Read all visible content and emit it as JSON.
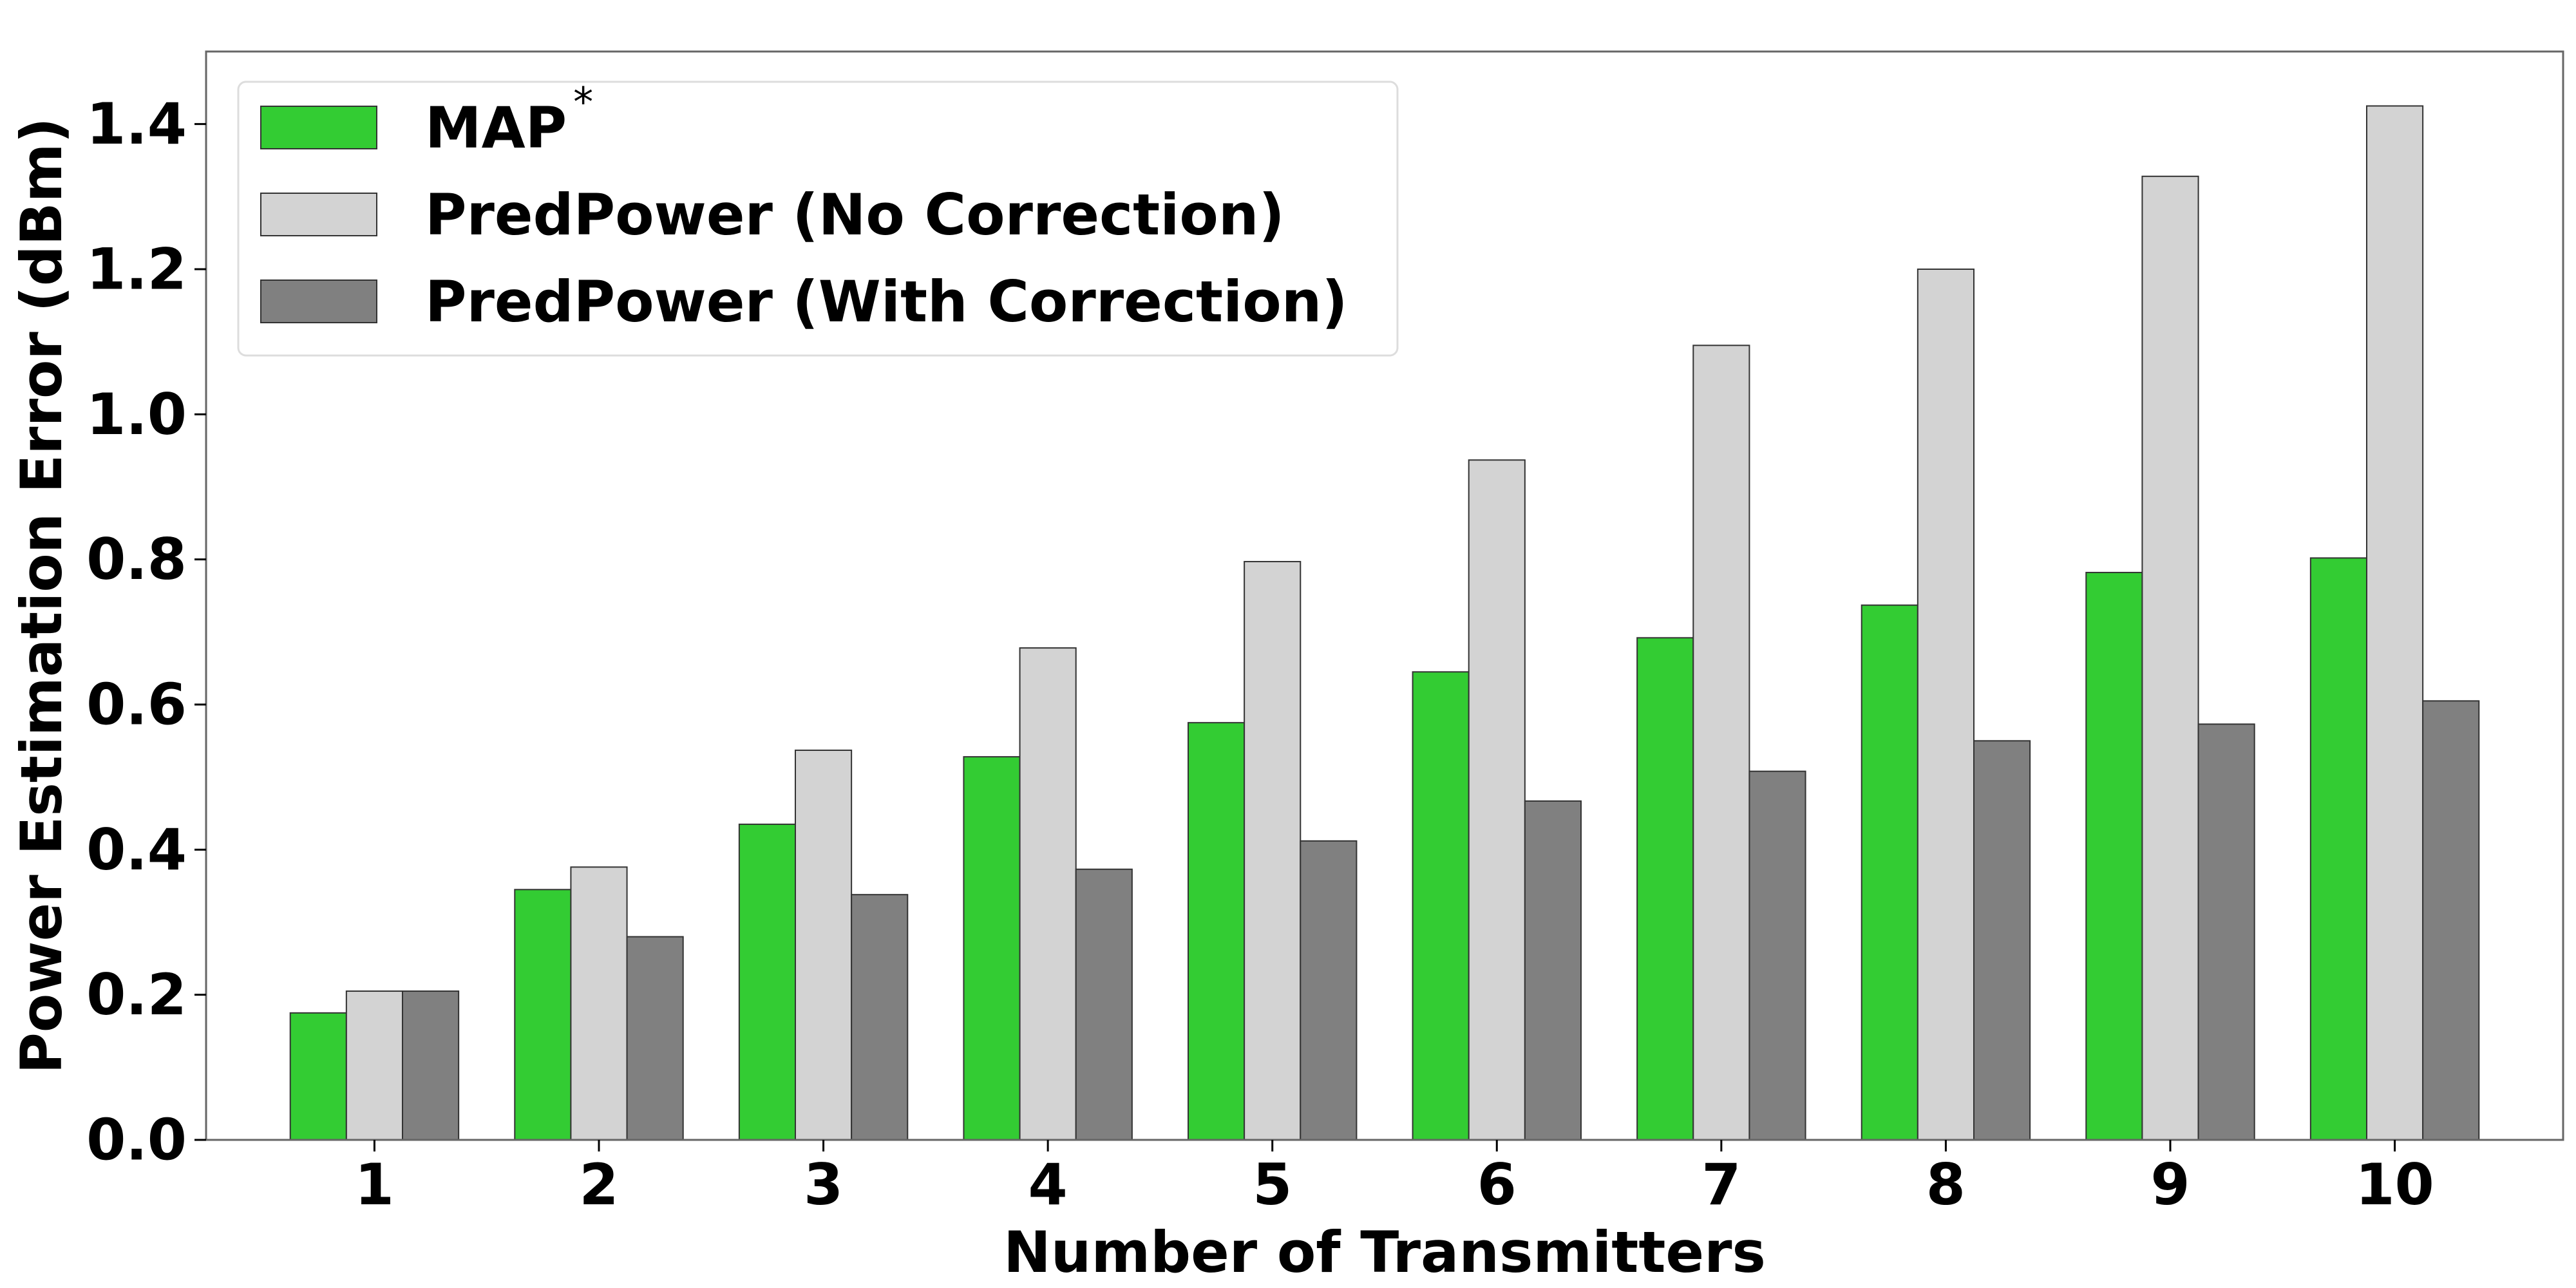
{
  "chart_data": {
    "type": "bar",
    "xlabel": "Number of Transmitters",
    "ylabel": "Power Estimation Error (dBm)",
    "categories": [
      "1",
      "2",
      "3",
      "4",
      "5",
      "6",
      "7",
      "8",
      "9",
      "10"
    ],
    "ylim": [
      0,
      1.5
    ],
    "yticks": [
      "0.0",
      "0.2",
      "0.4",
      "0.6",
      "0.8",
      "1.0",
      "1.2",
      "1.4"
    ],
    "grid": false,
    "legend_position": "top-left",
    "series": [
      {
        "name": "MAP",
        "name_suffix": "*",
        "color": "#33cc33",
        "values": [
          0.175,
          0.345,
          0.435,
          0.528,
          0.575,
          0.645,
          0.692,
          0.737,
          0.782,
          0.802
        ]
      },
      {
        "name": "PredPower (No Correction)",
        "color": "#d3d3d3",
        "values": [
          0.205,
          0.376,
          0.537,
          0.678,
          0.797,
          0.937,
          1.095,
          1.2,
          1.328,
          1.425
        ]
      },
      {
        "name": "PredPower (With Correction)",
        "color": "#808080",
        "values": [
          0.205,
          0.28,
          0.338,
          0.373,
          0.412,
          0.467,
          0.508,
          0.55,
          0.573,
          0.605
        ]
      }
    ]
  }
}
